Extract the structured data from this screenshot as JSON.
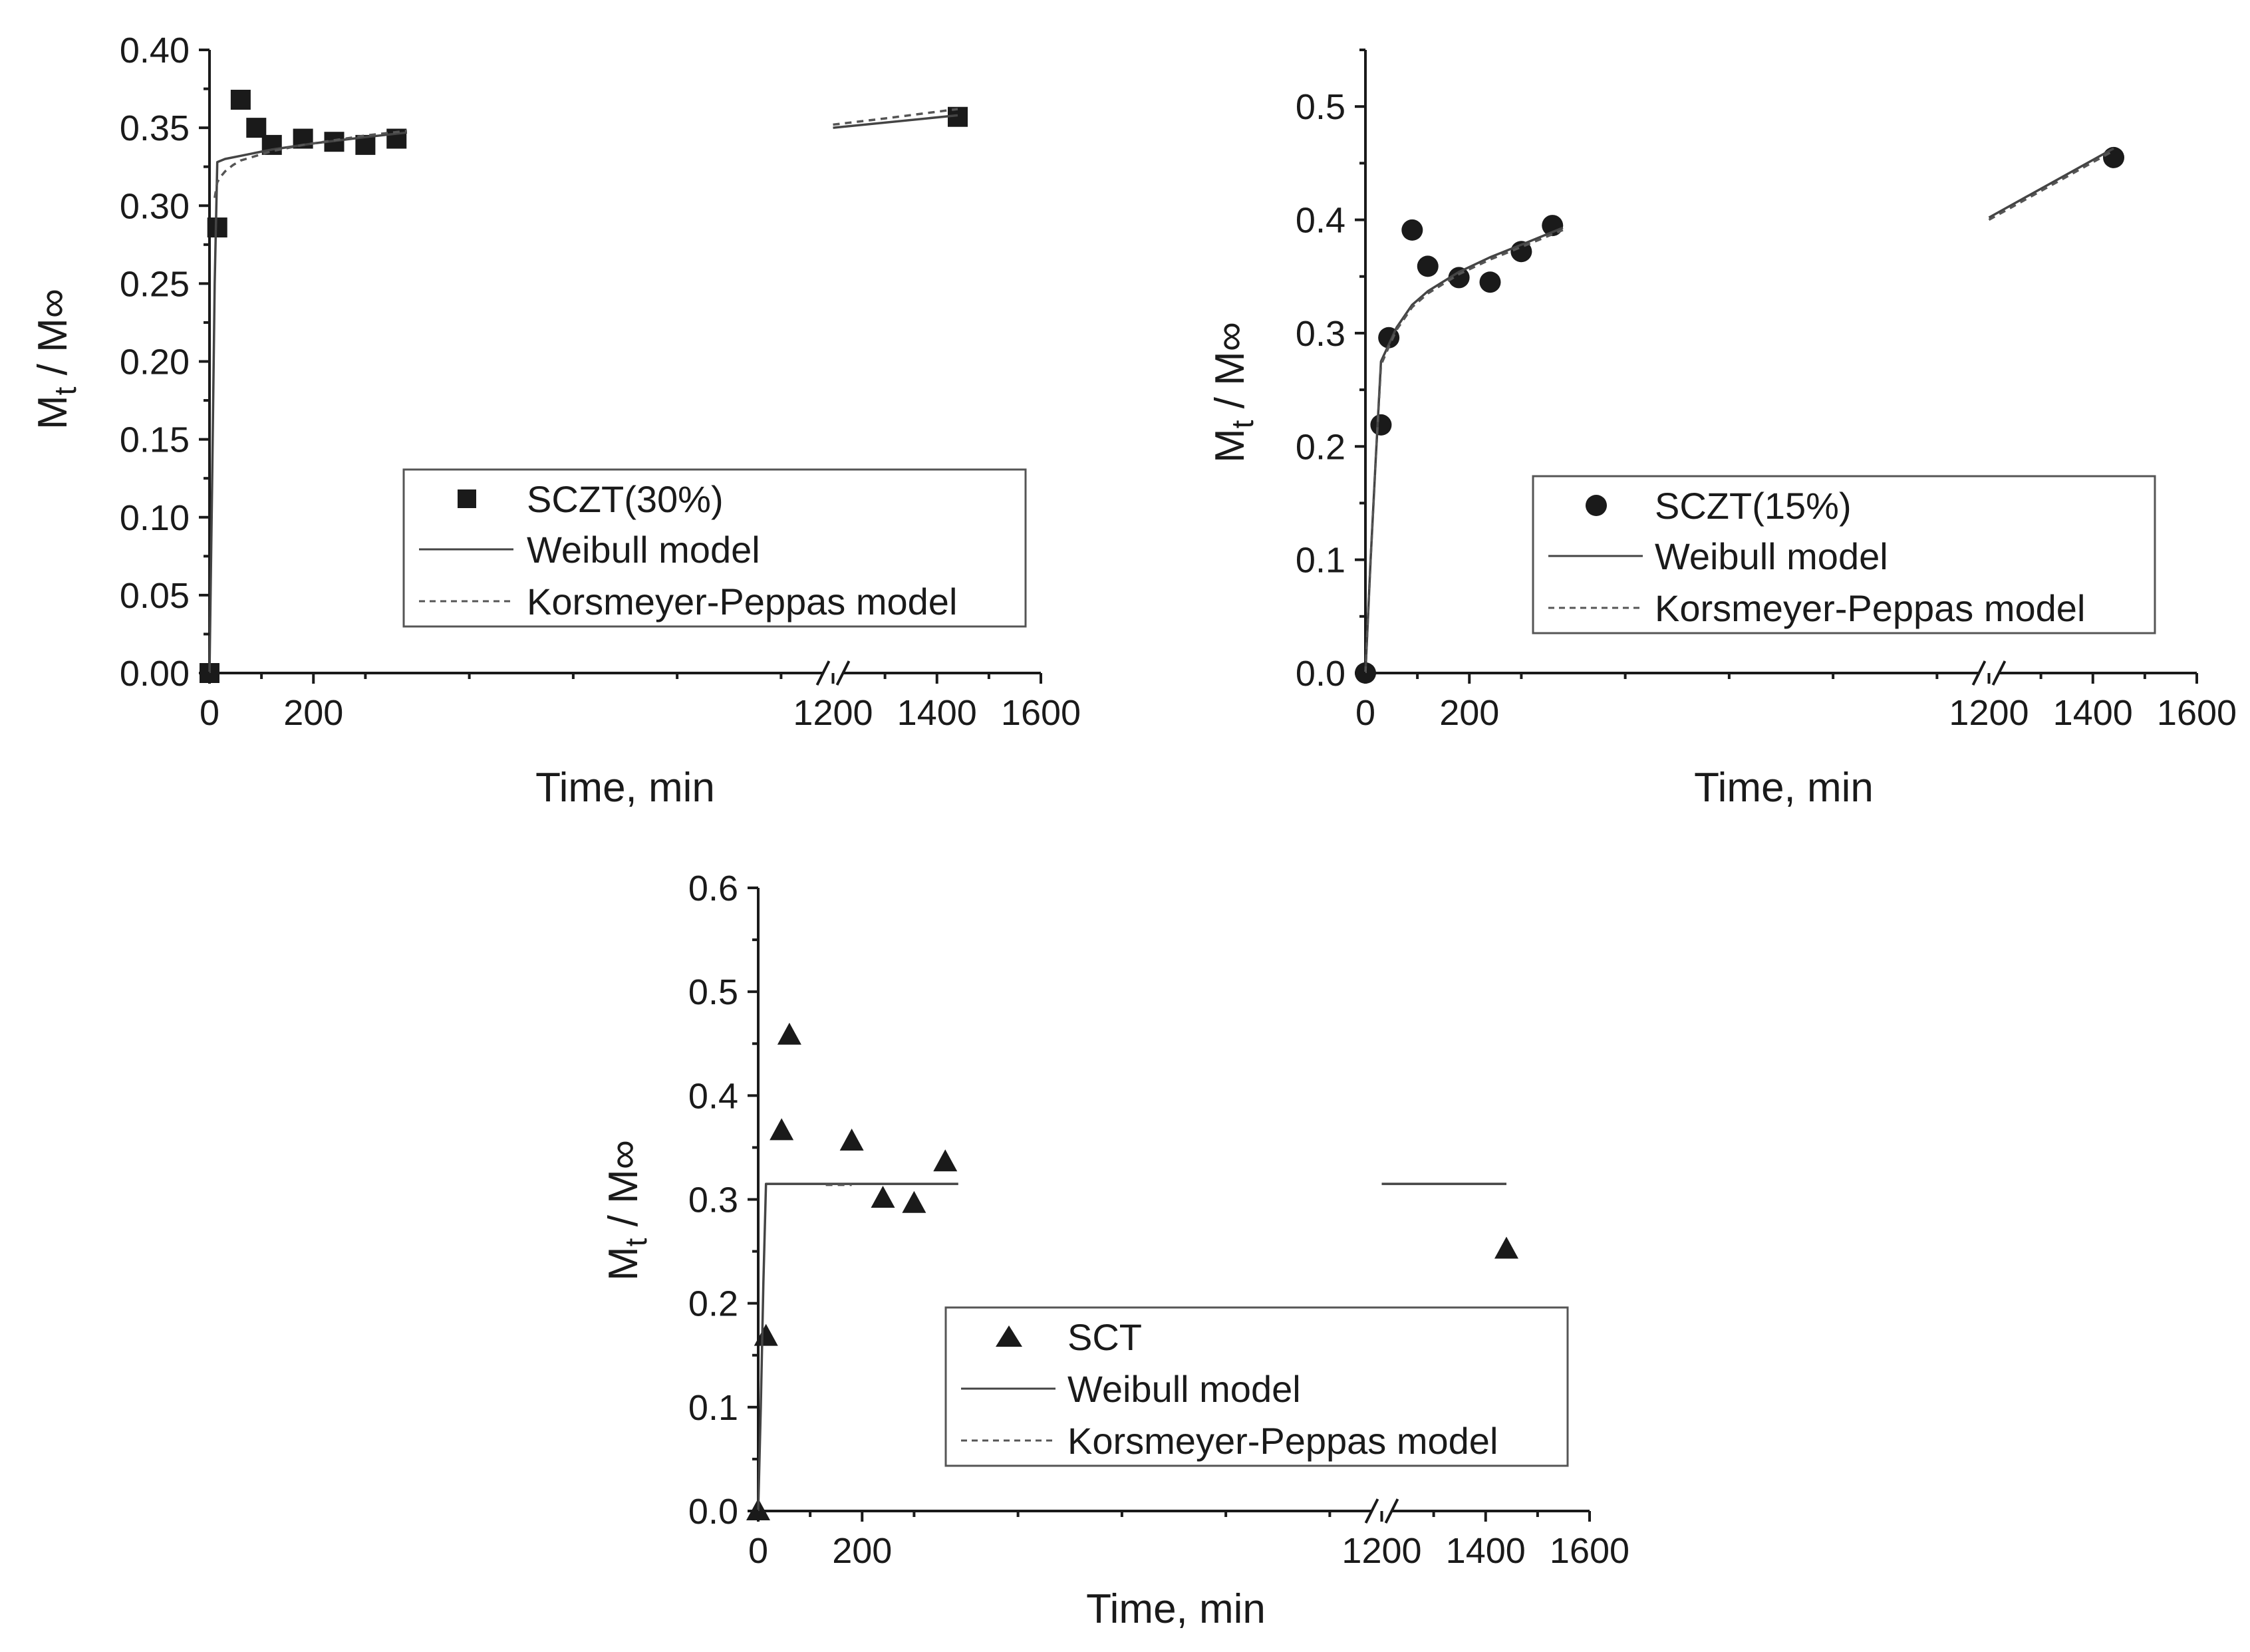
{
  "colors": {
    "ink": "#1a1a1a",
    "weibull": "#444444",
    "kp": "#555555",
    "legend_border": "#555555"
  },
  "chart_data": [
    {
      "type": "scatter",
      "title": "",
      "xlabel": "Time, min",
      "ylabel": "Mt / M∞",
      "ylabel_main": "M",
      "ylabel_sub": "t",
      "ylabel_rest": " / M∞",
      "xlim": [
        0,
        1600
      ],
      "ylim": [
        0,
        0.4
      ],
      "axis_break": 1200,
      "grid": false,
      "legend_position": "bottom-right",
      "xticks": [
        0,
        200,
        1200,
        1400,
        1600
      ],
      "xtick_labels": [
        "0",
        "200",
        "1200",
        "1400",
        "1600"
      ],
      "yticks": [
        0.0,
        0.05,
        0.1,
        0.15,
        0.2,
        0.25,
        0.3,
        0.35,
        0.4
      ],
      "ytick_labels": [
        "0.00",
        "0.05",
        "0.10",
        "0.15",
        "0.20",
        "0.25",
        "0.30",
        "0.35",
        "0.40"
      ],
      "series": [
        {
          "name": "SCZT(30%)",
          "kind": "points",
          "marker": "square",
          "x": [
            0,
            15,
            60,
            90,
            120,
            180,
            240,
            300,
            360,
            1440
          ],
          "y": [
            0.0,
            0.286,
            0.368,
            0.35,
            0.339,
            0.343,
            0.341,
            0.339,
            0.343,
            0.357
          ]
        },
        {
          "name": "Weibull model",
          "kind": "line",
          "dash": "solid",
          "segments": [
            {
              "x": [
                0,
                5,
                10,
                15,
                30,
                60,
                120,
                200,
                300,
                380
              ],
              "y": [
                0.0,
                0.12,
                0.25,
                0.328,
                0.33,
                0.332,
                0.336,
                0.34,
                0.344,
                0.347
              ]
            },
            {
              "x": [
                1200,
                1440
              ],
              "y": [
                0.35,
                0.358
              ]
            }
          ]
        },
        {
          "name": "Korsmeyer-Peppas model",
          "kind": "line",
          "dash": "dashed",
          "segments": [
            {
              "x": [
                10,
                15,
                20,
                30,
                45,
                60,
                90,
                120,
                180,
                240,
                300,
                380
              ],
              "y": [
                0.305,
                0.315,
                0.318,
                0.322,
                0.326,
                0.329,
                0.332,
                0.335,
                0.339,
                0.342,
                0.345,
                0.348
              ]
            },
            {
              "x": [
                1200,
                1300,
                1440
              ],
              "y": [
                0.352,
                0.356,
                0.362
              ]
            }
          ]
        }
      ]
    },
    {
      "type": "scatter",
      "title": "",
      "xlabel": "Time, min",
      "ylabel": "Mt / M∞",
      "ylabel_main": "M",
      "ylabel_sub": "t",
      "ylabel_rest": " / M∞",
      "xlim": [
        0,
        1600
      ],
      "ylim": [
        0,
        0.55
      ],
      "axis_break": 1200,
      "grid": false,
      "legend_position": "bottom-right",
      "xticks": [
        0,
        200,
        1200,
        1400,
        1600
      ],
      "xtick_labels": [
        "0",
        "200",
        "1200",
        "1400",
        "1600"
      ],
      "yticks": [
        0.0,
        0.1,
        0.2,
        0.3,
        0.4,
        0.5
      ],
      "ytick_labels": [
        "0.0",
        "0.1",
        "0.2",
        "0.3",
        "0.4",
        "0.5"
      ],
      "series": [
        {
          "name": "SCZT(15%)",
          "kind": "points",
          "marker": "circle",
          "x": [
            0,
            30,
            45,
            90,
            120,
            180,
            240,
            300,
            360,
            1440
          ],
          "y": [
            0.0,
            0.219,
            0.296,
            0.391,
            0.359,
            0.349,
            0.345,
            0.372,
            0.395,
            0.455
          ]
        },
        {
          "name": "Weibull model",
          "kind": "line",
          "dash": "solid",
          "segments": [
            {
              "x": [
                0,
                10,
                20,
                30,
                45,
                60,
                90,
                120,
                180,
                240,
                300,
                380
              ],
              "y": [
                0.0,
                0.1,
                0.19,
                0.275,
                0.29,
                0.305,
                0.325,
                0.337,
                0.354,
                0.367,
                0.378,
                0.393
              ]
            },
            {
              "x": [
                1200,
                1440
              ],
              "y": [
                0.402,
                0.463
              ]
            }
          ]
        },
        {
          "name": "Korsmeyer-Peppas model",
          "kind": "line",
          "dash": "dashed",
          "segments": [
            {
              "x": [
                0,
                10,
                20,
                30,
                45,
                60,
                90,
                120,
                180,
                240,
                300,
                380
              ],
              "y": [
                0.0,
                0.1,
                0.19,
                0.272,
                0.288,
                0.303,
                0.323,
                0.335,
                0.352,
                0.365,
                0.376,
                0.391
              ]
            },
            {
              "x": [
                1200,
                1440
              ],
              "y": [
                0.4,
                0.461
              ]
            }
          ]
        }
      ]
    },
    {
      "type": "scatter",
      "title": "",
      "xlabel": "Time, min",
      "ylabel": "Mt / M∞",
      "ylabel_main": "M",
      "ylabel_sub": "t",
      "ylabel_rest": " / M∞",
      "xlim": [
        0,
        1600
      ],
      "ylim": [
        0,
        0.6
      ],
      "axis_break": 1200,
      "grid": false,
      "legend_position": "bottom-right",
      "xticks": [
        0,
        200,
        1200,
        1400,
        1600
      ],
      "xtick_labels": [
        "0",
        "200",
        "1200",
        "1400",
        "1600"
      ],
      "yticks": [
        0.0,
        0.1,
        0.2,
        0.3,
        0.4,
        0.5,
        0.6
      ],
      "ytick_labels": [
        "0.0",
        "0.1",
        "0.2",
        "0.3",
        "0.4",
        "0.5",
        "0.6"
      ],
      "series": [
        {
          "name": "SCT",
          "kind": "points",
          "marker": "triangle",
          "x": [
            0,
            15,
            45,
            60,
            180,
            240,
            300,
            360,
            1440
          ],
          "y": [
            0.0,
            0.168,
            0.366,
            0.458,
            0.356,
            0.301,
            0.296,
            0.336,
            0.252
          ]
        },
        {
          "name": "Weibull model",
          "kind": "line",
          "dash": "solid",
          "segments": [
            {
              "x": [
                0,
                5,
                10,
                15,
                30,
                60,
                120,
                200,
                300,
                385
              ],
              "y": [
                0.0,
                0.1,
                0.22,
                0.315,
                0.315,
                0.315,
                0.315,
                0.315,
                0.315,
                0.315
              ]
            },
            {
              "x": [
                1200,
                1440
              ],
              "y": [
                0.315,
                0.315
              ]
            }
          ]
        },
        {
          "name": "Korsmeyer-Peppas model",
          "kind": "line",
          "dash": "dashed",
          "segments": [
            {
              "x": [
                130,
                180
              ],
              "y": [
                0.314,
                0.314
              ]
            }
          ]
        }
      ]
    }
  ]
}
